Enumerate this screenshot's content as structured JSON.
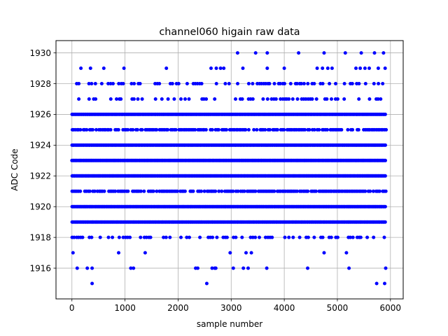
{
  "chart_data": {
    "type": "scatter",
    "title": "channel060 higain raw data",
    "xlabel": "sample number",
    "ylabel": "ADC Code",
    "xlim": [
      -300,
      6240
    ],
    "ylim": [
      1914.0,
      1930.8
    ],
    "x_ticks": [
      0,
      1000,
      2000,
      3000,
      4000,
      5000,
      6000
    ],
    "y_ticks": [
      1916,
      1918,
      1920,
      1922,
      1924,
      1926,
      1928,
      1930
    ],
    "x_tick_labels": [
      "0",
      "1000",
      "2000",
      "3000",
      "4000",
      "5000",
      "6000"
    ],
    "y_tick_labels": [
      "1916",
      "1918",
      "1920",
      "1922",
      "1924",
      "1926",
      "1928",
      "1930"
    ],
    "grid": true,
    "marker_color": "#0000ff",
    "n_samples": 5920,
    "series": [
      {
        "dense_levels": [
          1919,
          1920,
          1922,
          1923,
          1924,
          1926
        ],
        "medium_levels": [
          1921,
          1925
        ],
        "sparse_levels": [
          1918,
          1927,
          1928
        ],
        "rare_points": {
          "1930": [
            3120,
            3460,
            3680,
            4270,
            4750,
            5150,
            5450,
            5700,
            5870
          ],
          "1929": [
            170,
            350,
            600,
            980,
            1780,
            2620,
            2720,
            2800,
            2860,
            3220,
            3680,
            4000,
            4620,
            4720,
            4820,
            4900,
            5350,
            5430,
            5520,
            5600,
            5770,
            5900
          ],
          "1917": [
            20,
            880,
            1380,
            2980,
            3280,
            3380,
            4750,
            5170
          ],
          "1916": [
            100,
            290,
            380,
            1110,
            1160,
            2330,
            2370,
            2640,
            2690,
            2710,
            3040,
            3230,
            3320,
            3670,
            4440,
            5220,
            5910
          ],
          "1915": [
            380,
            2540,
            5740,
            5890
          ]
        }
      }
    ]
  }
}
